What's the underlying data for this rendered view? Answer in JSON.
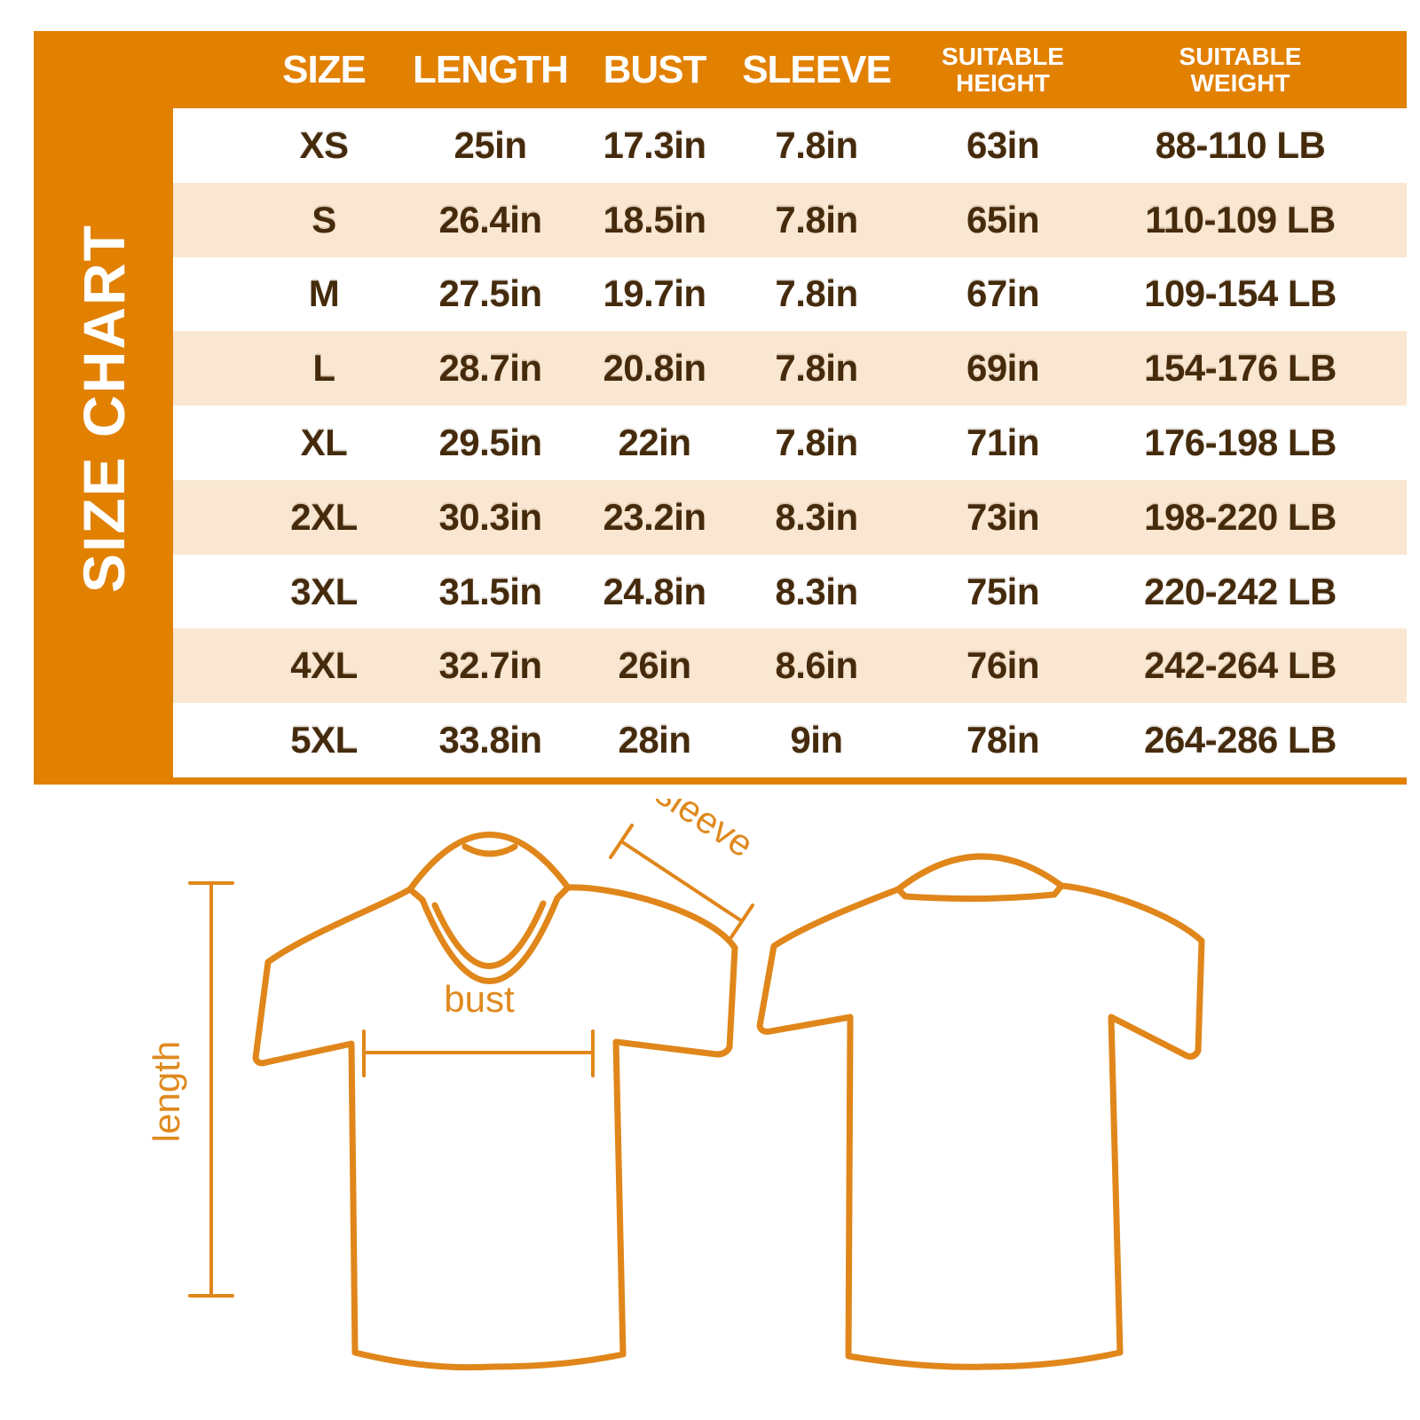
{
  "size_chart": {
    "title": "SIZE CHART",
    "colors": {
      "orange": "#E28000",
      "peach_row": "#FAE7D2",
      "white_row": "#FFFFFF",
      "text_brown": "#452B0C",
      "diagram_orange": "#E0861A"
    },
    "headers": [
      {
        "text": "SIZE",
        "two_line": false
      },
      {
        "text": "LENGTH",
        "two_line": false
      },
      {
        "text": "BUST",
        "two_line": false
      },
      {
        "text": "SLEEVE",
        "two_line": false
      },
      {
        "text": "SUITABLE\nHEIGHT",
        "two_line": true
      },
      {
        "text": "SUITABLE\nWEIGHT",
        "two_line": true
      }
    ],
    "rows": [
      [
        "XS",
        "25in",
        "17.3in",
        "7.8in",
        "63in",
        "88-110 LB"
      ],
      [
        "S",
        "26.4in",
        "18.5in",
        "7.8in",
        "65in",
        "110-109 LB"
      ],
      [
        "M",
        "27.5in",
        "19.7in",
        "7.8in",
        "67in",
        "109-154 LB"
      ],
      [
        "L",
        "28.7in",
        "20.8in",
        "7.8in",
        "69in",
        "154-176 LB"
      ],
      [
        "XL",
        "29.5in",
        "22in",
        "7.8in",
        "71in",
        "176-198 LB"
      ],
      [
        "2XL",
        "30.3in",
        "23.2in",
        "8.3in",
        "73in",
        "198-220 LB"
      ],
      [
        "3XL",
        "31.5in",
        "24.8in",
        "8.3in",
        "75in",
        "220-242 LB"
      ],
      [
        "4XL",
        "32.7in",
        "26in",
        "8.6in",
        "76in",
        "242-264 LB"
      ],
      [
        "5XL",
        "33.8in",
        "28in",
        "9in",
        "78in",
        "264-286 LB"
      ]
    ]
  },
  "diagram": {
    "labels": {
      "sleeve": "sleeve",
      "bust": "bust",
      "length": "length"
    }
  },
  "chart_data": {
    "type": "table",
    "title": "SIZE CHART",
    "columns": [
      "SIZE",
      "LENGTH",
      "BUST",
      "SLEEVE",
      "SUITABLE HEIGHT",
      "SUITABLE WEIGHT"
    ],
    "rows": [
      [
        "XS",
        "25in",
        "17.3in",
        "7.8in",
        "63in",
        "88-110 LB"
      ],
      [
        "S",
        "26.4in",
        "18.5in",
        "7.8in",
        "65in",
        "110-109 LB"
      ],
      [
        "M",
        "27.5in",
        "19.7in",
        "7.8in",
        "67in",
        "109-154 LB"
      ],
      [
        "L",
        "28.7in",
        "20.8in",
        "7.8in",
        "69in",
        "154-176 LB"
      ],
      [
        "XL",
        "29.5in",
        "22in",
        "7.8in",
        "71in",
        "176-198 LB"
      ],
      [
        "2XL",
        "30.3in",
        "23.2in",
        "8.3in",
        "73in",
        "198-220 LB"
      ],
      [
        "3XL",
        "31.5in",
        "24.8in",
        "8.3in",
        "75in",
        "220-242 LB"
      ],
      [
        "4XL",
        "32.7in",
        "26in",
        "8.6in",
        "76in",
        "242-264 LB"
      ],
      [
        "5XL",
        "33.8in",
        "28in",
        "9in",
        "78in",
        "264-286 LB"
      ]
    ]
  }
}
